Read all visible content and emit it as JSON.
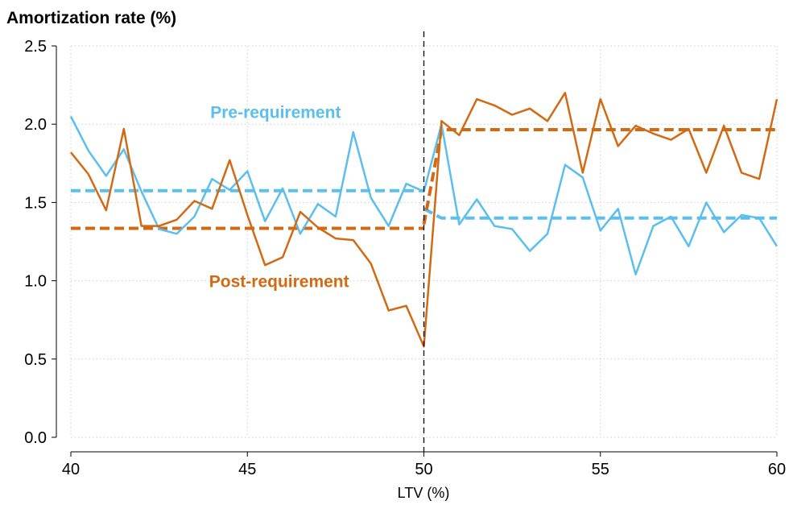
{
  "chart_data": {
    "type": "line",
    "title": "Amortization rate (%)",
    "xlabel": "LTV (%)",
    "ylabel": "",
    "xlim": [
      40,
      60
    ],
    "ylim": [
      0,
      2.5
    ],
    "xticks": [
      40,
      45,
      50,
      55,
      60
    ],
    "yticks": [
      0.0,
      0.5,
      1.0,
      1.5,
      2.0,
      2.5
    ],
    "ytick_labels": [
      "0.0",
      "0.5",
      "1.0",
      "1.5",
      "2.0",
      "2.5"
    ],
    "grid": true,
    "threshold_x": 50,
    "series": [
      {
        "name": "Pre-requirement",
        "color": "#5bbfee",
        "label_position": {
          "x": 45.8,
          "y": 2.04
        },
        "x": [
          40,
          40.5,
          41,
          41.5,
          42,
          42.5,
          43,
          43.5,
          44,
          44.5,
          45,
          45.5,
          46,
          46.5,
          47,
          47.5,
          48,
          48.5,
          49,
          49.5,
          50,
          50.5,
          51,
          51.5,
          52,
          52.5,
          53,
          53.5,
          54,
          54.5,
          55,
          55.5,
          56,
          56.5,
          57,
          57.5,
          58,
          58.5,
          59,
          59.5,
          60
        ],
        "values": [
          2.05,
          1.83,
          1.67,
          1.84,
          1.57,
          1.33,
          1.3,
          1.41,
          1.65,
          1.58,
          1.7,
          1.38,
          1.59,
          1.3,
          1.49,
          1.41,
          1.95,
          1.53,
          1.35,
          1.62,
          1.57,
          2.0,
          1.36,
          1.52,
          1.35,
          1.33,
          1.19,
          1.3,
          1.74,
          1.66,
          1.32,
          1.46,
          1.04,
          1.35,
          1.41,
          1.22,
          1.5,
          1.31,
          1.42,
          1.4,
          1.22
        ],
        "fit_left": [
          [
            40,
            1.575
          ],
          [
            50,
            1.575
          ]
        ],
        "fit_right": [
          [
            50,
            1.46
          ],
          [
            50.5,
            1.4
          ],
          [
            60,
            1.4
          ]
        ]
      },
      {
        "name": "Post-requirement",
        "color": "#d26a14",
        "label_position": {
          "x": 45.9,
          "y": 0.96
        },
        "x": [
          40,
          40.5,
          41,
          41.5,
          42,
          42.5,
          43,
          43.5,
          44,
          44.5,
          45,
          45.5,
          46,
          46.5,
          47,
          47.5,
          48,
          48.5,
          49,
          49.5,
          50,
          50.5,
          51,
          51.5,
          52,
          52.5,
          53,
          53.5,
          54,
          54.5,
          55,
          55.5,
          56,
          56.5,
          57,
          57.5,
          58,
          58.5,
          59,
          59.5,
          60
        ],
        "values": [
          1.82,
          1.68,
          1.45,
          1.97,
          1.35,
          1.35,
          1.39,
          1.51,
          1.46,
          1.77,
          1.42,
          1.1,
          1.15,
          1.44,
          1.34,
          1.27,
          1.26,
          1.11,
          0.81,
          0.84,
          0.58,
          2.02,
          1.93,
          2.16,
          2.12,
          2.06,
          2.1,
          2.02,
          2.2,
          1.69,
          2.16,
          1.86,
          1.99,
          1.94,
          1.9,
          1.97,
          1.69,
          1.99,
          1.69,
          1.65,
          2.16
        ],
        "fit_left": [
          [
            40,
            1.335
          ],
          [
            50,
            1.335
          ]
        ],
        "fit_right": [
          [
            50,
            1.36
          ],
          [
            50.5,
            1.965
          ],
          [
            60,
            1.965
          ]
        ]
      }
    ]
  }
}
